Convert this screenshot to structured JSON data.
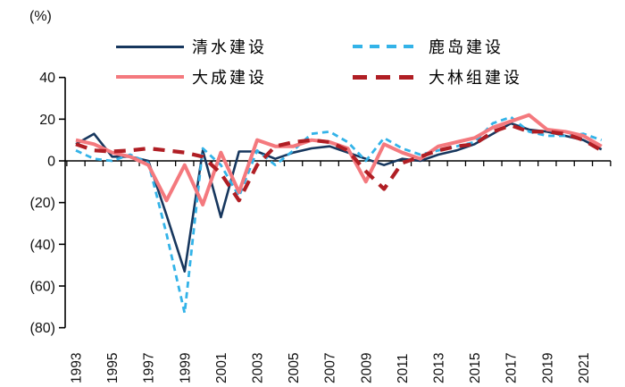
{
  "unit_label": "(%)",
  "legend": {
    "items": [
      {
        "id": "shimizu",
        "label": "清水建设",
        "color": "#17375E",
        "dash": "solid",
        "thickness": 3
      },
      {
        "id": "taisei",
        "label": "大成建设",
        "color": "#F4797E",
        "dash": "solid",
        "thickness": 4
      },
      {
        "id": "kajima",
        "label": "鹿岛建设",
        "color": "#33B3E8",
        "dash": "dashed-small",
        "thickness": 4
      },
      {
        "id": "obayashi",
        "label": "大林组建设",
        "color": "#B01E24",
        "dash": "dashed-large",
        "thickness": 5
      }
    ]
  },
  "chart_data": {
    "type": "line",
    "title": "",
    "ylabel": "(%)",
    "xlabel": "",
    "grid": false,
    "legend_position": "top",
    "ylim": [
      -80,
      40
    ],
    "x": [
      1993,
      1994,
      1995,
      1996,
      1997,
      1998,
      1999,
      2000,
      2001,
      2002,
      2003,
      2004,
      2005,
      2006,
      2007,
      2008,
      2009,
      2010,
      2011,
      2012,
      2013,
      2014,
      2015,
      2016,
      2017,
      2018,
      2019,
      2020,
      2021,
      2022
    ],
    "xtick_labels": [
      "1993",
      "1995",
      "1997",
      "1999",
      "2001",
      "2003",
      "2005",
      "2007",
      "2009",
      "2011",
      "2013",
      "2015",
      "2017",
      "2019",
      "2021"
    ],
    "yticks": [
      {
        "v": 40,
        "label": "40"
      },
      {
        "v": 20,
        "label": "20"
      },
      {
        "v": 0,
        "label": "0"
      },
      {
        "v": -20,
        "label": "(20)"
      },
      {
        "v": -40,
        "label": "(40)"
      },
      {
        "v": -60,
        "label": "(60)"
      },
      {
        "v": -80,
        "label": "(80)"
      }
    ],
    "series": [
      {
        "name": "清水建设",
        "id": "shimizu",
        "color": "#17375E",
        "style": "solid",
        "width": 2.6,
        "values": [
          8,
          13,
          2,
          2,
          0,
          -26,
          -53,
          5,
          -27,
          4.5,
          4.5,
          1,
          4,
          6,
          7,
          4,
          1,
          -2,
          1,
          0,
          3,
          5,
          8,
          13,
          18,
          15,
          14,
          12,
          10,
          5.5
        ]
      },
      {
        "name": "鹿岛建设",
        "id": "kajima",
        "color": "#33B3E8",
        "style": "dashed",
        "dash": "7 5",
        "width": 2.8,
        "values": [
          5,
          1,
          0,
          3,
          -1,
          -35,
          -73,
          6,
          -2,
          -17,
          5,
          -2,
          5,
          13,
          14,
          9,
          0,
          11,
          6,
          3,
          5,
          7,
          9,
          18,
          21,
          14,
          12,
          12,
          13,
          10
        ]
      },
      {
        "name": "大成建设",
        "id": "taisei",
        "color": "#F4797E",
        "style": "solid",
        "width": 4,
        "values": [
          10,
          8,
          4,
          2,
          -2,
          -19,
          -2,
          -21,
          4,
          -15,
          10,
          7,
          7,
          10,
          9,
          6,
          -10,
          8,
          4,
          1,
          7,
          9,
          11,
          16,
          19,
          22,
          15,
          14,
          12,
          7
        ]
      },
      {
        "name": "大林组建设",
        "id": "obayashi",
        "color": "#B01E24",
        "style": "dashed",
        "dash": "13 9",
        "width": 4.2,
        "values": [
          8,
          5,
          4.5,
          5,
          6,
          5,
          4,
          2,
          -6,
          -19,
          -2,
          7,
          9,
          10,
          9,
          5,
          -5,
          -13.5,
          -1,
          2,
          5,
          7,
          8,
          14,
          17,
          14,
          14,
          13,
          10,
          5
        ]
      }
    ]
  }
}
